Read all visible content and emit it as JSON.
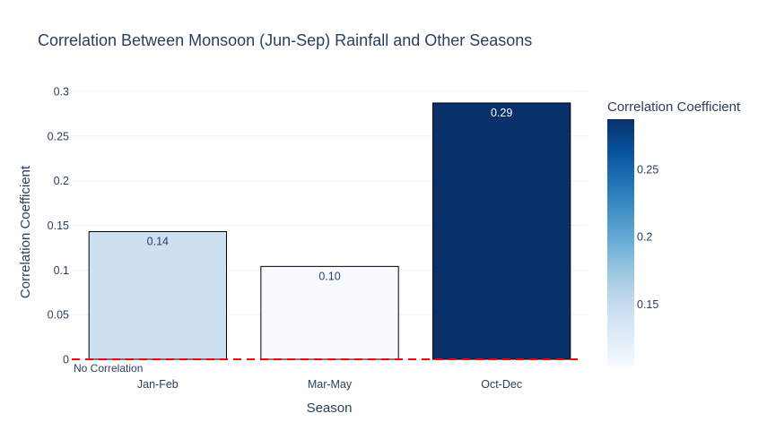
{
  "chart_data": {
    "type": "bar",
    "title": "Correlation Between Monsoon (Jun-Sep) Rainfall and Other Seasons",
    "xlabel": "Season",
    "ylabel": "Correlation Coefficient",
    "categories": [
      "Jan-Feb",
      "Mar-May",
      "Oct-Dec"
    ],
    "values": [
      0.143,
      0.104,
      0.287
    ],
    "value_labels": [
      "0.14",
      "0.10",
      "0.29"
    ],
    "ylim": [
      0,
      0.3
    ],
    "yticks": [
      0,
      0.05,
      0.1,
      0.15,
      0.2,
      0.25,
      0.3
    ],
    "ytick_labels": [
      "0",
      "0.05",
      "0.1",
      "0.15",
      "0.2",
      "0.25",
      "0.3"
    ],
    "grid": true,
    "reference_line": {
      "y": 0,
      "label": "No Correlation",
      "color": "#ff0000",
      "style": "dashed"
    },
    "colorbar": {
      "title": "Correlation Coefficient",
      "colorscale": "Blues",
      "min": 0.104,
      "max": 0.287,
      "ticks": [
        0.15,
        0.2,
        0.25
      ],
      "tick_labels": [
        "0.15",
        "0.2",
        "0.25"
      ]
    }
  }
}
